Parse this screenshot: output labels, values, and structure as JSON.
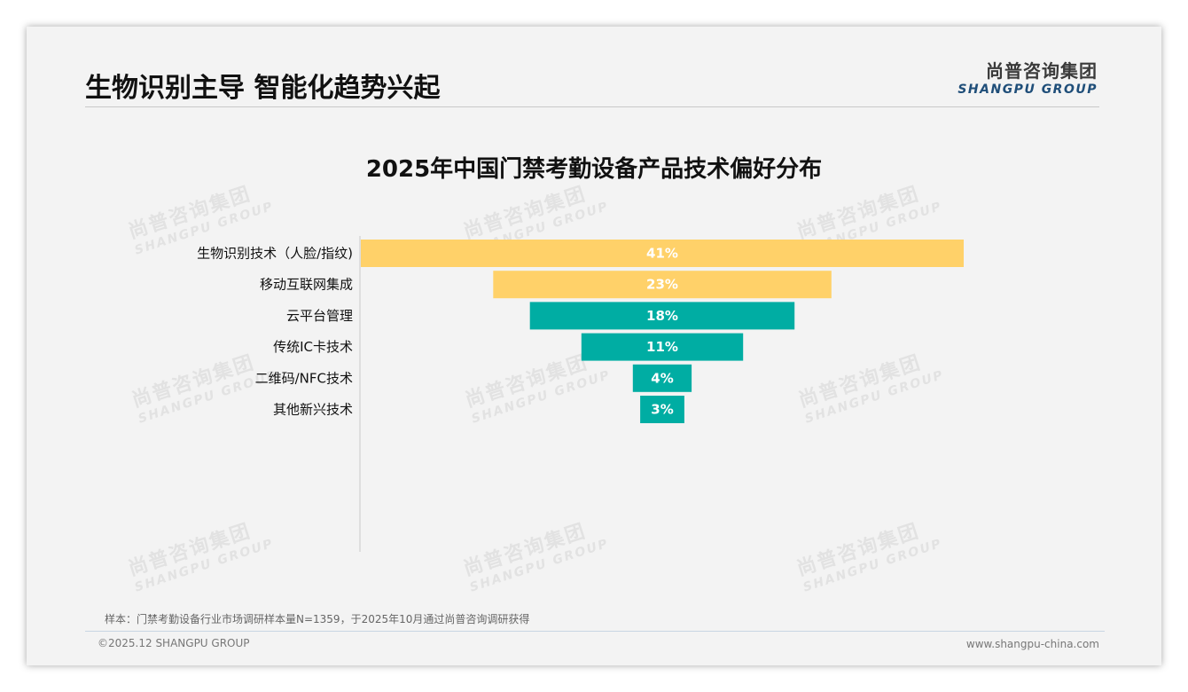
{
  "page": {
    "title": "生物识别主导 智能化趋势兴起",
    "footnote": "样本：门禁考勤设备行业市场调研样本量N=1359，于2025年10月通过尚普咨询调研获得",
    "copyright": "©2025.12 SHANGPU GROUP",
    "website": "www.shangpu-china.com"
  },
  "logo": {
    "cn": "尚普咨询集团",
    "en": "SHANGPU GROUP"
  },
  "watermark": {
    "cn": "尚普咨询集团",
    "en": "SHANGPU GROUP"
  },
  "colors": {
    "highlight": "#FFD169",
    "teal": "#00ADA3",
    "label_text": "#FFFFFF"
  },
  "chart_data": {
    "type": "bar",
    "orientation": "horizontal",
    "style": "funnel (centered bars)",
    "title": "2025年中国门禁考勤设备产品技术偏好分布",
    "categories": [
      "生物识别技术（人脸/指纹)",
      "移动互联网集成",
      "云平台管理",
      "传统IC卡技术",
      "二维码/NFC技术",
      "其他新兴技术"
    ],
    "values": [
      41,
      23,
      18,
      11,
      4,
      3
    ],
    "data_labels": [
      "41%",
      "23%",
      "18%",
      "11%",
      "4%",
      "3%"
    ],
    "bar_colors": [
      "#FFD169",
      "#FFD169",
      "#00ADA3",
      "#00ADA3",
      "#00ADA3",
      "#00ADA3"
    ],
    "unit": "%",
    "xlim": [
      0,
      41
    ],
    "legend": "none",
    "grid": false
  }
}
